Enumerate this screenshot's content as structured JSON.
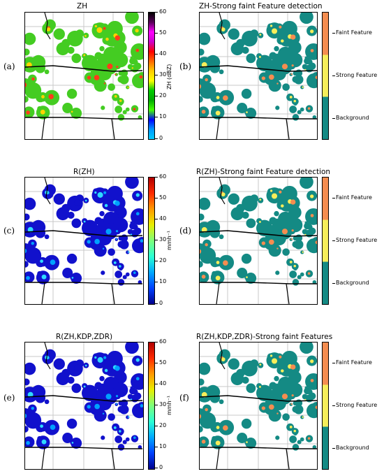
{
  "figure": {
    "rows": [
      {
        "letter_left": "(a)",
        "letter_right": "(b)",
        "title_left": "ZH",
        "title_right": "ZH-Strong faint Feature detection",
        "colorbar": {
          "label": "ZH (dBZ)",
          "ticks": [
            "60",
            "50",
            "40",
            "30",
            "20",
            "10",
            "0"
          ],
          "stops": [
            "#000000",
            "#5a005a",
            "#ff00ff",
            "#cc00cc",
            "#ff0000",
            "#ff6600",
            "#ffcc00",
            "#ffff00",
            "#00cc00",
            "#00aa00",
            "#44ff00",
            "#0000ff",
            "#0099ff",
            "#00ccff"
          ]
        }
      },
      {
        "letter_left": "(c)",
        "letter_right": "(d)",
        "title_left": "R(ZH)",
        "title_right": "R(ZH)-Strong faint Feature detection",
        "colorbar": {
          "label": "mmh⁻¹",
          "ticks": [
            "60",
            "50",
            "40",
            "30",
            "20",
            "10",
            "0"
          ],
          "stops": [
            "#b00000",
            "#ff2a00",
            "#ff9900",
            "#e8ee00",
            "#7cff7c",
            "#2affd4",
            "#00a8ff",
            "#0040ff",
            "#00008c"
          ]
        }
      },
      {
        "letter_left": "(e)",
        "letter_right": "(f)",
        "title_left": "R(ZH,KDP,ZDR)",
        "title_right": "R(ZH,KDP,ZDR)-Strong faint Features",
        "colorbar": {
          "label": "mmh⁻¹",
          "ticks": [
            "60",
            "50",
            "40",
            "30",
            "20",
            "10",
            "0"
          ],
          "stops": [
            "#b00000",
            "#ff2a00",
            "#ff9900",
            "#e8ee00",
            "#7cff7c",
            "#2affd4",
            "#00a8ff",
            "#0040ff",
            "#00008c"
          ]
        }
      }
    ],
    "class_legend": {
      "labels": [
        "Faint Feature",
        "Strong Feature",
        "Background"
      ],
      "colors": [
        "#f58d50",
        "#f7ee5a",
        "#148a84"
      ]
    },
    "map_colors": {
      "background_class": "#148a84",
      "strong_class": "#f7ee5a",
      "faint_class": "#f58d50",
      "rain_low": "#1111cc",
      "refl_low": "#44cc22"
    }
  }
}
